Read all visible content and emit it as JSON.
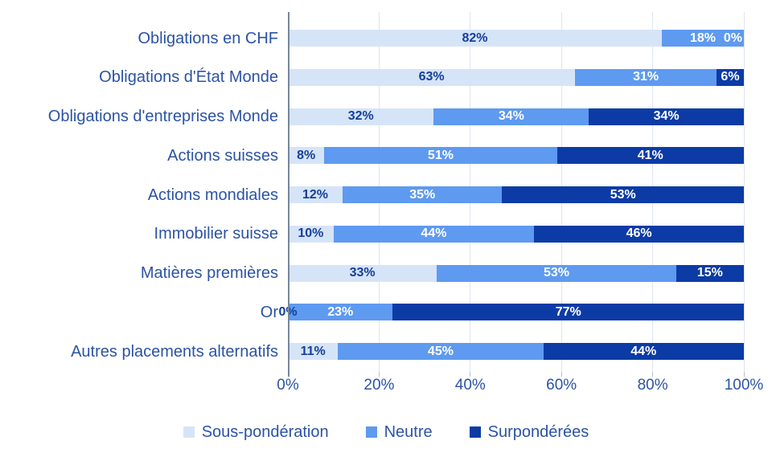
{
  "chart_data": {
    "type": "bar",
    "orientation": "horizontal",
    "stacked": true,
    "title": "",
    "unit": "%",
    "categories": [
      "Obligations en CHF",
      "Obligations d'État Monde",
      "Obligations d'entreprises Monde",
      "Actions suisses",
      "Actions mondiales",
      "Immobilier suisse",
      "Matières premières",
      "Or",
      "Autres placements alternatifs"
    ],
    "series": [
      {
        "name": "Sous-pondération",
        "color": "#D6E4F8",
        "label_color": "#143F9B",
        "values": [
          82,
          63,
          32,
          8,
          12,
          10,
          33,
          0,
          11
        ]
      },
      {
        "name": "Neutre",
        "color": "#5E9AF0",
        "label_color": "#FFFFFF",
        "values": [
          18,
          31,
          34,
          51,
          35,
          44,
          53,
          23,
          45
        ]
      },
      {
        "name": "Surpondérées",
        "color": "#0C3BA6",
        "label_color": "#FFFFFF",
        "values": [
          0,
          6,
          34,
          41,
          53,
          46,
          15,
          77,
          44
        ]
      }
    ],
    "x_axis": {
      "tick_values": [
        0,
        20,
        40,
        60,
        80,
        100
      ],
      "tick_labels": [
        "0%",
        "20%",
        "40%",
        "60%",
        "80%",
        "100%"
      ],
      "min": 0,
      "max": 100
    },
    "grid": "vertical",
    "legend_position": "bottom"
  },
  "colors": {
    "background": "#FFFFFF",
    "category_label": "#2B53A4",
    "axis_label": "#2B53A4",
    "legend_label": "#2B53A4",
    "gridline": "#DFE5EF",
    "tick": "#B6C2D4",
    "axis_line": "#76879D"
  }
}
